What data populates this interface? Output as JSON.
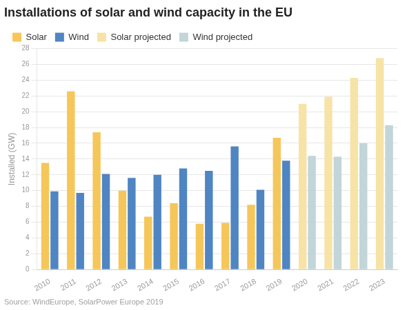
{
  "chart_data": {
    "type": "bar",
    "title": "Installations of solar and wind capacity in the EU",
    "source": "Source: WindEurope, SolarPower Europe 2019",
    "y_label": "Installed (GW)",
    "categories": [
      "2010",
      "2011",
      "2012",
      "2013",
      "2014",
      "2015",
      "2016",
      "2017",
      "2018",
      "2019",
      "2020",
      "2021",
      "2022",
      "2023"
    ],
    "series": [
      {
        "name": "Solar",
        "color": "#f5c75a",
        "values": [
          13.5,
          22.6,
          17.4,
          10.0,
          6.7,
          8.4,
          5.8,
          5.9,
          8.2,
          16.7,
          null,
          null,
          null,
          null
        ]
      },
      {
        "name": "Wind",
        "color": "#4f85c2",
        "values": [
          9.9,
          9.7,
          12.1,
          11.6,
          12.0,
          12.8,
          12.5,
          15.6,
          10.1,
          13.8,
          null,
          null,
          null,
          null
        ]
      },
      {
        "name": "Solar projected",
        "color": "#f7e3a6",
        "values": [
          null,
          null,
          null,
          null,
          null,
          null,
          null,
          null,
          null,
          null,
          21.0,
          21.9,
          24.3,
          26.8
        ]
      },
      {
        "name": "Wind projected",
        "color": "#c2d5d9",
        "values": [
          null,
          null,
          null,
          null,
          null,
          null,
          null,
          null,
          null,
          null,
          14.4,
          14.3,
          16.0,
          18.3
        ]
      }
    ],
    "ylim": [
      0,
      28
    ],
    "yticks": [
      0,
      2,
      4,
      6,
      8,
      10,
      12,
      14,
      16,
      18,
      20,
      22,
      24,
      26,
      28
    ],
    "grid": true,
    "legend": "top"
  }
}
